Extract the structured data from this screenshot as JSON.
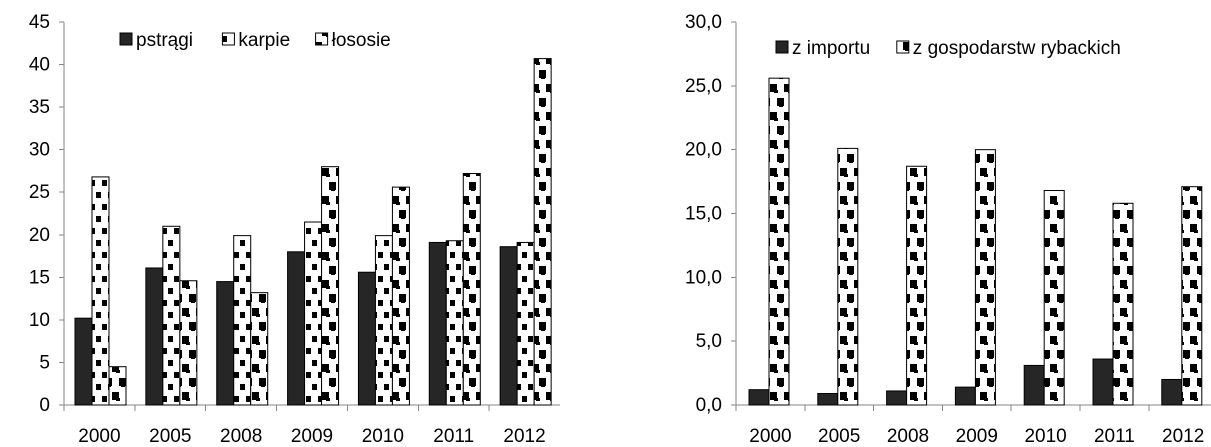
{
  "chart_data": [
    {
      "type": "bar",
      "title": "",
      "xlabel": "",
      "ylabel": "",
      "categories": [
        "2000",
        "2005",
        "2008",
        "2009",
        "2010",
        "2011",
        "2012"
      ],
      "ylim": [
        0,
        45
      ],
      "yticks": [
        "0",
        "5",
        "10",
        "15",
        "20",
        "25",
        "30",
        "35",
        "40",
        "45"
      ],
      "grid": false,
      "legend_position": "top-center",
      "series": [
        {
          "name": "pstrągi",
          "pattern": "solid",
          "color": "#262626",
          "values": [
            10.2,
            16.1,
            14.5,
            18.0,
            15.6,
            19.1,
            18.6
          ]
        },
        {
          "name": "karpie",
          "pattern": "dashed-checker",
          "color": "#000000",
          "values": [
            26.8,
            21.0,
            19.9,
            21.5,
            19.9,
            19.3,
            19.1
          ]
        },
        {
          "name": "łososie",
          "pattern": "zigzag",
          "color": "#000000",
          "values": [
            4.5,
            14.6,
            13.2,
            28.0,
            25.6,
            27.2,
            40.7
          ]
        }
      ]
    },
    {
      "type": "bar",
      "title": "",
      "xlabel": "",
      "ylabel": "",
      "categories": [
        "2000",
        "2005",
        "2008",
        "2009",
        "2010",
        "2011",
        "2012"
      ],
      "ylim": [
        0,
        30
      ],
      "yticks": [
        "0,0",
        "5,0",
        "10,0",
        "15,0",
        "20,0",
        "25,0",
        "30,0"
      ],
      "grid": false,
      "legend_position": "top-center",
      "series": [
        {
          "name": "z importu",
          "pattern": "solid",
          "color": "#262626",
          "values": [
            1.2,
            0.9,
            1.1,
            1.4,
            3.1,
            3.6,
            2.0
          ]
        },
        {
          "name": "z gospodarstw rybackich",
          "pattern": "zigzag",
          "color": "#000000",
          "values": [
            25.6,
            20.1,
            18.7,
            20.0,
            16.8,
            15.8,
            17.1
          ]
        }
      ]
    }
  ]
}
